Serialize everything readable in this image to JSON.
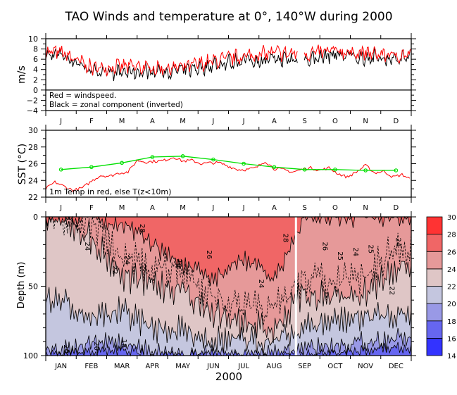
{
  "title": "TAO Winds and temperature at 0°, 140°W during 2000",
  "chart_data": [
    {
      "type": "line",
      "name": "winds",
      "ylabel": "m/s",
      "ylim": [
        -4,
        10
      ],
      "yticks": [
        10,
        8,
        6,
        4,
        2,
        0,
        -2,
        -4
      ],
      "xtick_labels": [
        "J",
        "F",
        "M",
        "A",
        "M",
        "J",
        "J",
        "A",
        "S",
        "O",
        "N",
        "D"
      ],
      "annotations": [
        "Red = windspeed.",
        "Black = zonal component (inverted)"
      ],
      "reference_line": 0,
      "series": [
        {
          "name": "windspeed",
          "color": "#ff0000",
          "monthly_approx": [
            7.3,
            4.3,
            4.6,
            4.3,
            4.4,
            5.6,
            6.6,
            7.2,
            7.0,
            7.6,
            7.1,
            6.8
          ]
        },
        {
          "name": "zonal component (inverted)",
          "color": "#000000",
          "monthly_approx": [
            7.0,
            4.0,
            3.4,
            3.8,
            3.8,
            5.0,
            6.0,
            6.0,
            5.8,
            7.0,
            6.4,
            6.4
          ]
        }
      ]
    },
    {
      "type": "line",
      "name": "sst",
      "ylabel": "SST (°C)",
      "ylim": [
        22,
        30
      ],
      "yticks": [
        30,
        28,
        26,
        24,
        22
      ],
      "xtick_labels": [
        "J",
        "F",
        "M",
        "A",
        "M",
        "J",
        "J",
        "A",
        "S",
        "O",
        "N",
        "D"
      ],
      "annotations": [
        "1m Temp in red, else T(z<10m)"
      ],
      "series": [
        {
          "name": "1m Temp",
          "color": "#ff0000",
          "x_month": [
            0,
            0.3,
            0.6,
            0.9,
            1.2,
            1.5,
            1.8,
            2.1,
            2.4,
            2.7,
            3.0,
            3.3,
            3.6,
            3.9,
            4.2,
            4.5,
            4.8,
            5.1,
            5.4,
            5.7,
            6.0,
            6.3,
            6.6,
            6.9,
            7.2,
            7.5,
            7.8,
            8.1,
            8.4,
            8.7,
            9.0,
            9.3,
            9.6,
            9.9,
            10.2,
            10.5,
            10.8,
            11.1,
            11.4,
            11.7,
            12.0
          ],
          "values": [
            23.0,
            23.8,
            23.3,
            22.8,
            23.1,
            23.9,
            24.6,
            24.5,
            24.9,
            25.0,
            26.4,
            26.2,
            26.3,
            26.4,
            26.8,
            26.3,
            26.4,
            26.0,
            26.1,
            26.1,
            25.7,
            25.3,
            25.3,
            25.5,
            26.3,
            25.4,
            25.3,
            25.0,
            25.3,
            25.5,
            25.2,
            25.5,
            24.8,
            24.4,
            25.0,
            25.8,
            24.9,
            25.1,
            24.4,
            24.7,
            24.1
          ]
        },
        {
          "name": "T(z<10m) monthly",
          "color": "#00e000",
          "x_month": [
            0.5,
            1.5,
            2.5,
            3.5,
            4.5,
            5.5,
            6.5,
            7.5,
            8.5,
            9.5,
            10.5,
            11.5
          ],
          "values": [
            25.3,
            25.6,
            26.1,
            26.8,
            26.9,
            26.5,
            26.0,
            25.6,
            25.3,
            25.3,
            25.2,
            25.2
          ]
        }
      ]
    },
    {
      "type": "heatmap",
      "name": "depth-temperature",
      "ylabel": "Depth (m)",
      "xlabel": "2000",
      "ylim": [
        100,
        0
      ],
      "yticks": [
        0,
        50,
        100
      ],
      "xtick_labels": [
        "JAN",
        "FEB",
        "MAR",
        "APR",
        "MAY",
        "JUN",
        "JUL",
        "AUG",
        "SEP",
        "OCT",
        "NOV",
        "DEC"
      ],
      "contour_labels": [
        "20",
        "22",
        "24",
        "25",
        "26",
        "28"
      ],
      "colorbar": {
        "levels": [
          14,
          16,
          18,
          20,
          22,
          24,
          26,
          28,
          30
        ],
        "colors": [
          "#3333ff",
          "#6666f0",
          "#9999e6",
          "#c4c6df",
          "#dfc6c6",
          "#e69999",
          "#f06666",
          "#ff3333"
        ]
      },
      "isotherm_depth_monthly": {
        "t20": [
          95,
          92,
          90,
          97,
          100,
          100,
          100,
          100,
          95,
          92,
          90,
          88
        ],
        "t22": [
          60,
          72,
          68,
          80,
          82,
          88,
          90,
          88,
          80,
          75,
          72,
          70
        ],
        "t24": [
          0,
          15,
          42,
          48,
          52,
          68,
          78,
          80,
          55,
          60,
          55,
          35
        ],
        "t26": [
          0,
          0,
          5,
          20,
          35,
          45,
          30,
          45,
          0,
          0,
          0,
          0
        ],
        "t28": [
          0,
          0,
          0,
          0,
          18,
          12,
          0,
          0,
          0,
          0,
          0,
          0
        ]
      }
    }
  ]
}
